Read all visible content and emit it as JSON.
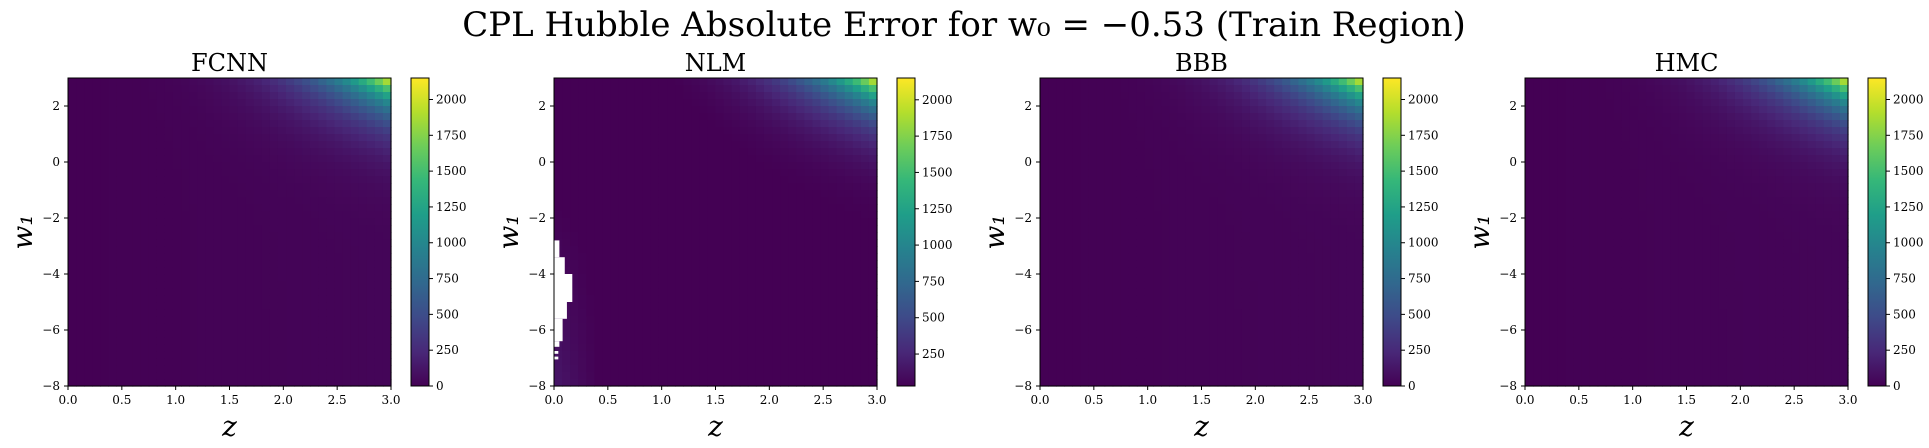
{
  "figure": {
    "title": "CPL Hubble Absolute Error for w₀ = −0.53 (Train Region)"
  },
  "chart_data": [
    {
      "type": "heatmap",
      "title": "FCNN",
      "xlabel": "z",
      "ylabel": "w₁",
      "xlim": [
        0.0,
        3.0
      ],
      "ylim": [
        -8,
        3
      ],
      "xticks": [
        "0.0",
        "0.5",
        "1.0",
        "1.5",
        "2.0",
        "2.5",
        "3.0"
      ],
      "yticks": [
        "−8",
        "−6",
        "−4",
        "−2",
        "0",
        "2"
      ],
      "colormap": "viridis",
      "colorbar": {
        "min": 0,
        "max": 2150,
        "ticks": [
          "0",
          "250",
          "500",
          "750",
          "1000",
          "1250",
          "1500",
          "1750",
          "2000"
        ]
      },
      "peak": {
        "z": 3.0,
        "w1": 3.0,
        "value": 2150
      }
    },
    {
      "type": "heatmap",
      "title": "NLM",
      "xlabel": "z",
      "ylabel": "w₁",
      "xlim": [
        0.0,
        3.0
      ],
      "ylim": [
        -8,
        3
      ],
      "xticks": [
        "0.0",
        "0.5",
        "1.0",
        "1.5",
        "2.0",
        "2.5",
        "3.0"
      ],
      "yticks": [
        "−8",
        "−6",
        "−4",
        "−2",
        "0",
        "2"
      ],
      "colormap": "viridis",
      "colorbar": {
        "min": 30,
        "max": 2150,
        "ticks": [
          "250",
          "500",
          "750",
          "1000",
          "1250",
          "1500",
          "1750",
          "2000"
        ]
      },
      "peak": {
        "z": 3.0,
        "w1": 3.0,
        "value": 2150
      },
      "missing_region": "white gap near z = 0 for w₁ between about −7 and −3"
    },
    {
      "type": "heatmap",
      "title": "BBB",
      "xlabel": "z",
      "ylabel": "w₁",
      "xlim": [
        0.0,
        3.0
      ],
      "ylim": [
        -8,
        3
      ],
      "xticks": [
        "0.0",
        "0.5",
        "1.0",
        "1.5",
        "2.0",
        "2.5",
        "3.0"
      ],
      "yticks": [
        "−8",
        "−6",
        "−4",
        "−2",
        "0",
        "2"
      ],
      "colormap": "viridis",
      "colorbar": {
        "min": 0,
        "max": 2150,
        "ticks": [
          "0",
          "250",
          "500",
          "750",
          "1000",
          "1250",
          "1500",
          "1750",
          "2000"
        ]
      },
      "peak": {
        "z": 3.0,
        "w1": 3.0,
        "value": 2150
      }
    },
    {
      "type": "heatmap",
      "title": "HMC",
      "xlabel": "z",
      "ylabel": "w₁",
      "xlim": [
        0.0,
        3.0
      ],
      "ylim": [
        -8,
        3
      ],
      "xticks": [
        "0.0",
        "0.5",
        "1.0",
        "1.5",
        "2.0",
        "2.5",
        "3.0"
      ],
      "yticks": [
        "−8",
        "−6",
        "−4",
        "−2",
        "0",
        "2"
      ],
      "colormap": "viridis",
      "colorbar": {
        "min": 0,
        "max": 2150,
        "ticks": [
          "0",
          "250",
          "500",
          "750",
          "1000",
          "1250",
          "1500",
          "1750",
          "2000"
        ]
      },
      "peak": {
        "z": 3.0,
        "w1": 3.0,
        "value": 2150
      }
    }
  ]
}
